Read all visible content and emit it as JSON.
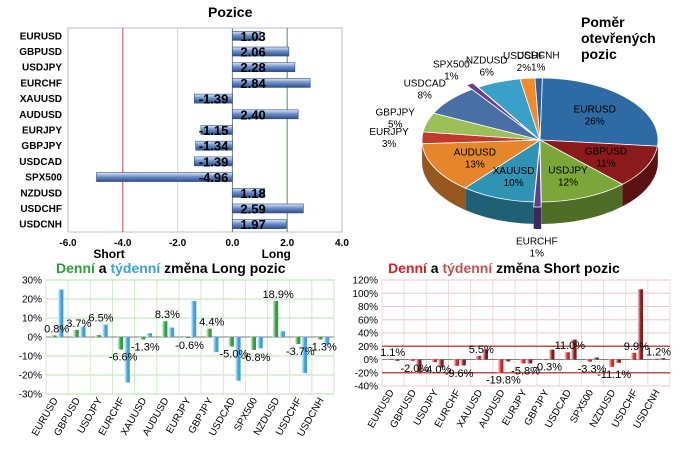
{
  "chart_data": [
    {
      "type": "bar",
      "orientation": "horizontal",
      "title": "Pozice",
      "categories": [
        "EURUSD",
        "GBPUSD",
        "USDJPY",
        "EURCHF",
        "XAUUSD",
        "AUDUSD",
        "EURJPY",
        "GBPJPY",
        "USDCAD",
        "SPX500",
        "NZDUSD",
        "USDCHF",
        "USDCNH"
      ],
      "values": [
        1.03,
        2.06,
        2.28,
        2.84,
        -1.39,
        2.4,
        -1.15,
        -1.34,
        -1.39,
        -4.96,
        1.18,
        2.59,
        1.97
      ],
      "value_labels": [
        "1.03",
        "2.06",
        "2.28",
        "2.84",
        "-1.39",
        "2.40",
        "-1.15",
        "-1.34",
        "-1.39",
        "-4.96",
        "1.18",
        "2.59",
        "1.97"
      ],
      "xlim": [
        -6,
        4
      ],
      "xticks": [
        "-6.0",
        "-4.0",
        "-2.0",
        "0.0",
        "2.0",
        "4.0"
      ],
      "short_label": "Short",
      "long_label": "Long",
      "short_threshold": -4,
      "long_threshold": 2,
      "colors": {
        "bar": "#6f8fc7",
        "short_line": "#c0504d",
        "long_line": "#4f9a3c"
      }
    },
    {
      "type": "pie",
      "title": "Poměr otevřených pozic",
      "slices": [
        {
          "name": "EURUSD",
          "label": "26%",
          "value": 26,
          "color": "#2e6aa3"
        },
        {
          "name": "GBPUSD",
          "label": "11%",
          "value": 11,
          "color": "#8b1a1a"
        },
        {
          "name": "USDJPY",
          "label": "12%",
          "value": 12,
          "color": "#7aa63a"
        },
        {
          "name": "EURCHF",
          "label": "1%",
          "value": 1,
          "color": "#5b3f8c"
        },
        {
          "name": "XAUUSD",
          "label": "10%",
          "value": 10,
          "color": "#2f93b3"
        },
        {
          "name": "AUDUSD",
          "label": "13%",
          "value": 13,
          "color": "#e5862c"
        },
        {
          "name": "EURJPY",
          "label": "3%",
          "value": 3,
          "color": "#c0392b"
        },
        {
          "name": "GBPJPY",
          "label": "5%",
          "value": 5,
          "color": "#9cbf5a"
        },
        {
          "name": "USDCAD",
          "label": "8%",
          "value": 8,
          "color": "#4a6fa5"
        },
        {
          "name": "SPX500",
          "label": "1%",
          "value": 1,
          "color": "#6a3f8f"
        },
        {
          "name": "NZDUSD",
          "label": "6%",
          "value": 6,
          "color": "#3aa0c8"
        },
        {
          "name": "USDCHF",
          "label": "2%",
          "value": 2,
          "color": "#f08a2a"
        },
        {
          "name": "USDCNH",
          "label": "1%",
          "value": 1,
          "color": "#2f5f9a"
        }
      ]
    },
    {
      "type": "bar",
      "title_parts": [
        {
          "text": "Denní",
          "color": "#2e9e3b"
        },
        {
          "text": " a ",
          "color": "#000000"
        },
        {
          "text": "týdenní",
          "color": "#3aa0e0"
        },
        {
          "text": " změna Long pozic",
          "color": "#000000"
        }
      ],
      "categories": [
        "EURUSD",
        "GBPUSD",
        "USDJPY",
        "EURCHF",
        "XAUUSD",
        "AUDUSD",
        "EURJPY",
        "GBPJPY",
        "USDCAD",
        "SPX500",
        "NZDUSD",
        "USDCHF",
        "USDCNH"
      ],
      "series": [
        {
          "values": [
            0.8,
            3.7,
            1.0,
            -6.6,
            -1.3,
            8.3,
            -0.6,
            4.4,
            -5.0,
            -6.8,
            18.9,
            -3.7,
            -1.3
          ],
          "color": "#2e9e3b"
        },
        {
          "values": [
            25.0,
            5.5,
            6.5,
            -24.0,
            2.0,
            5.0,
            19.0,
            -8.0,
            -23.0,
            -6.0,
            3.0,
            -19.0,
            -4.0
          ],
          "color": "#3aa0e0"
        }
      ],
      "value_labels": [
        "0.8%",
        "3.7%",
        "6.5%",
        "-6.6%",
        "-1.3%",
        "8.3%",
        "-0.6%",
        "4.4%",
        "-5.0%",
        "-6.8%",
        "18.9%",
        "-3.7%",
        "-1.3%"
      ],
      "label_series": [
        0,
        0,
        1,
        0,
        0,
        0,
        0,
        0,
        0,
        0,
        0,
        0,
        0
      ],
      "ylim": [
        -30,
        30
      ],
      "yticks": [
        "30%",
        "20%",
        "10%",
        "0%",
        "-10%",
        "-20%",
        "-30%"
      ]
    },
    {
      "type": "bar",
      "title_parts": [
        {
          "text": "Denní",
          "color": "#d92020"
        },
        {
          "text": " a ",
          "color": "#000000"
        },
        {
          "text": "týdenní",
          "color": "#c0504d"
        },
        {
          "text": " změna Short pozic",
          "color": "#000000"
        }
      ],
      "categories": [
        "EURUSD",
        "GBPUSD",
        "USDJPY",
        "EURCHF",
        "XAUUSD",
        "AUDUSD",
        "EURJPY",
        "GBPJPY",
        "USDCAD",
        "SPX500",
        "NZDUSD",
        "USDCHF",
        "USDCNH"
      ],
      "series": [
        {
          "values": [
            1.1,
            -2.0,
            -4.0,
            -9.6,
            5.5,
            -19.8,
            -5.8,
            -0.3,
            11.0,
            -3.3,
            -11.1,
            9.9,
            1.2
          ],
          "color": "#d92020"
        },
        {
          "values": [
            -2.0,
            -20.0,
            -12.0,
            -9.0,
            15.0,
            -3.0,
            -6.0,
            15.0,
            30.0,
            3.0,
            -5.0,
            106.0,
            2.0
          ],
          "color": "#8b1a1a"
        }
      ],
      "value_labels": [
        "1.1%",
        "-2.0%",
        "-4.0%",
        "-9.6%",
        "5.5%",
        "-19.8%",
        "-5.8%",
        "-0.3%",
        "11.0%",
        "-3.3%",
        "-11.1%",
        "9.9%",
        "1.2%"
      ],
      "ylim": [
        -40,
        120
      ],
      "yticks": [
        "120%",
        "100%",
        "80%",
        "60%",
        "40%",
        "20%",
        "0%",
        "-20%",
        "-40%"
      ],
      "reference_lines": [
        20,
        -20
      ]
    }
  ]
}
